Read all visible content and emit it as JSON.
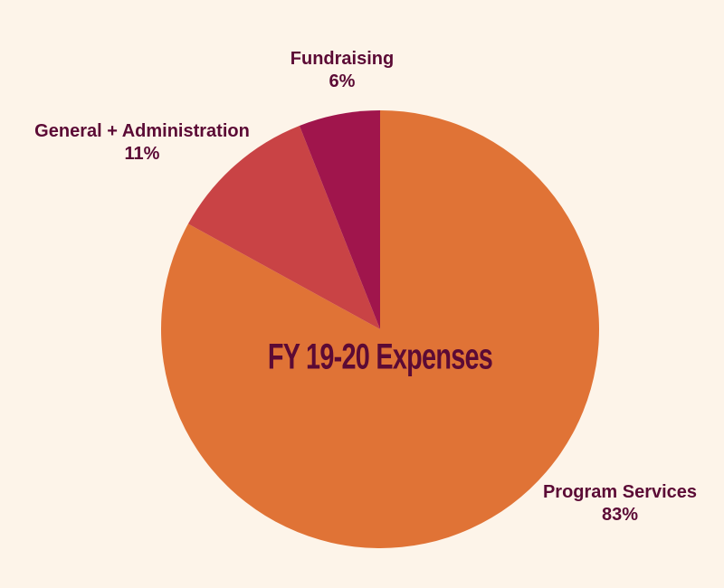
{
  "chart_data": {
    "type": "pie",
    "title": "FY 19-20 Expenses",
    "slices": [
      {
        "label": "Program Services",
        "value": 83,
        "value_label": "83%",
        "color": "#e07336"
      },
      {
        "label": "General + Administration",
        "value": 11,
        "value_label": "11%",
        "color": "#c94345"
      },
      {
        "label": "Fundraising",
        "value": 6,
        "value_label": "6%",
        "color": "#a0154c"
      }
    ],
    "start": "top",
    "direction": "clockwise"
  },
  "colors": {
    "background": "#fdf4e9",
    "text": "#5b0a35"
  }
}
